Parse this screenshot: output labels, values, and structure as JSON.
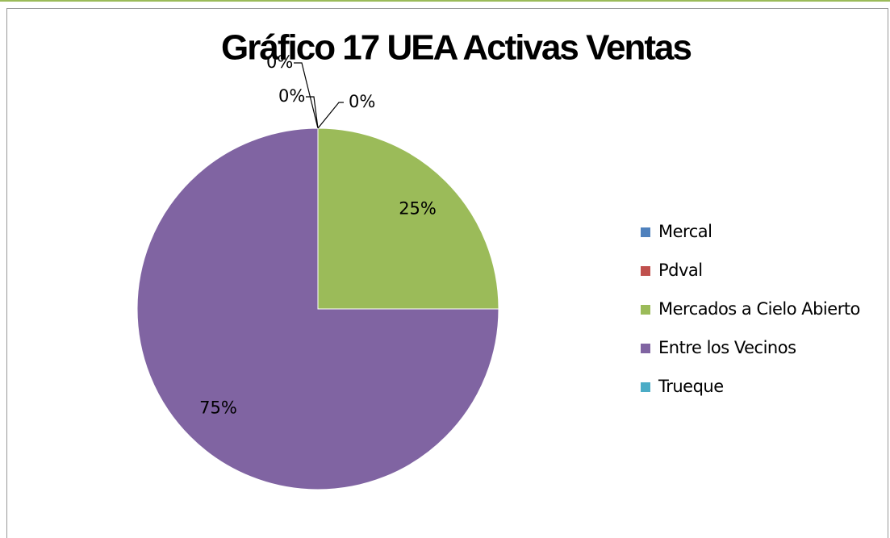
{
  "chart_data": {
    "type": "pie",
    "title": "Gráfico 17  UEA Activas Ventas",
    "categories": [
      "Mercal",
      "Pdval",
      "Mercados a Cielo Abierto",
      "Entre los Vecinos",
      "Trueque"
    ],
    "values": [
      0,
      0,
      25,
      75,
      0
    ],
    "value_labels": [
      "0%",
      "0%",
      "25%",
      "75%",
      "0%"
    ],
    "colors": [
      "#4f81bd",
      "#c0504d",
      "#9bbb59",
      "#8064a2",
      "#4bacc6"
    ],
    "legend": "right"
  }
}
